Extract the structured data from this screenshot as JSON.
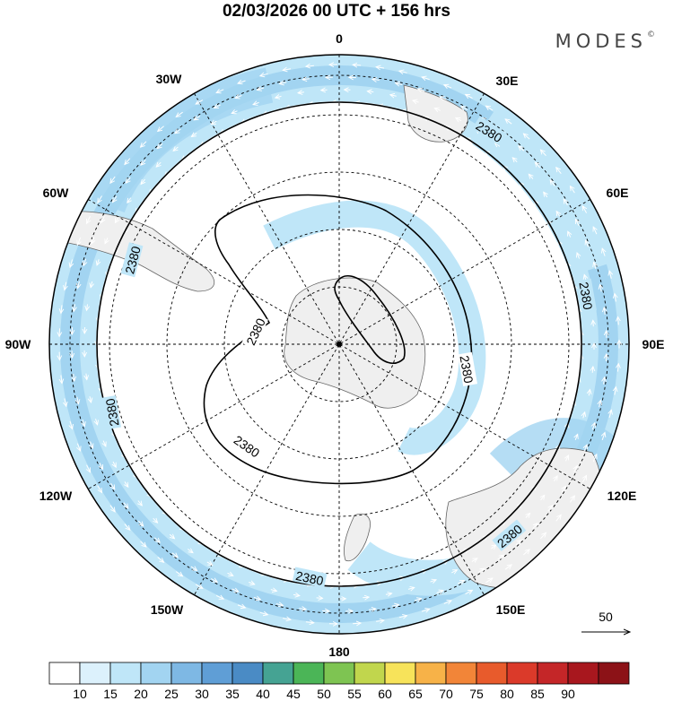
{
  "title": "02/03/2026  00 UTC  + 156 hrs",
  "brand": {
    "name": "MODES",
    "mark": "©"
  },
  "longitude_labels": {
    "n": "0",
    "nne": "30E",
    "ene": "60E",
    "e": "90E",
    "ese": "120E",
    "sse": "150E",
    "s": "180",
    "ssw": "150W",
    "wsw": "120W",
    "w": "90W",
    "wnw": "60W",
    "nnw": "30W"
  },
  "contour_label": "2380",
  "vector_reference": {
    "value": "50"
  },
  "colorbar": {
    "ticks": [
      "10",
      "15",
      "20",
      "25",
      "30",
      "35",
      "40",
      "45",
      "50",
      "55",
      "60",
      "65",
      "70",
      "75",
      "80",
      "85",
      "90"
    ],
    "colors": [
      "#ffffff",
      "#dcf1fc",
      "#bfe6f8",
      "#a2d4f1",
      "#7eb8e4",
      "#5f9ed6",
      "#4a8bc5",
      "#45a393",
      "#4bb557",
      "#7ec452",
      "#c1d64d",
      "#f7e35a",
      "#f7b248",
      "#f28538",
      "#e85b2c",
      "#db3a2a",
      "#c42628",
      "#a8171e",
      "#8c1217"
    ]
  },
  "map": {
    "projection": "south-polar-stereographic",
    "field": "wind speed",
    "contour_value": 2380,
    "background": "light-gray-land"
  }
}
